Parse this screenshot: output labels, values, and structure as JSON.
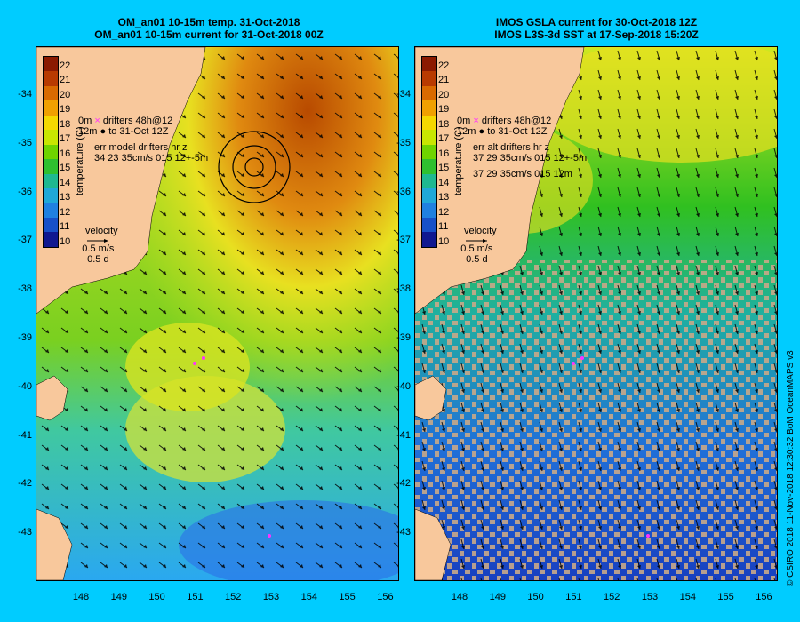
{
  "left_panel": {
    "title_line1": "OM_an01 10-15m temp. 31-Oct-2018",
    "title_line2": "OM_an01 10-15m current for 31-Oct-2018 00Z",
    "legend": {
      "drifters_label": "drifters 48h@12",
      "drifters_label2": "to 31-Oct 12Z",
      "depth_marker": "0m",
      "depth_marker2": "12m",
      "err_label": "err model drifters hr z",
      "err_values": "34 23 35cm/s 015 12+-5m",
      "velocity_title": "velocity",
      "velocity_value": "0.5 m/s",
      "velocity_days": "0.5 d"
    }
  },
  "right_panel": {
    "title_line1": "IMOS GSLA current for 30-Oct-2018 12Z",
    "title_line2": "IMOS L3S-3d SST at 17-Sep-2018 15:20Z",
    "legend": {
      "drifters_label": "drifters 48h@12",
      "drifters_label2": "to 31-Oct 12Z",
      "depth_marker": "0m",
      "depth_marker2": "12m",
      "err_label": "err alt drifters hr z",
      "err_values": "37 29 35cm/s 015 12+-5m",
      "err_values2": "37 29 35cm/s 015 12m",
      "velocity_title": "velocity",
      "velocity_value": "0.5 m/s",
      "velocity_days": "0.5 d"
    }
  },
  "colorbar": {
    "label": "temperature (C)",
    "ticks": [
      "22",
      "21",
      "20",
      "19",
      "18",
      "17",
      "16",
      "15",
      "14",
      "13",
      "12",
      "11",
      "10"
    ],
    "colors": [
      "#8b1a00",
      "#b83a00",
      "#d96a00",
      "#f0a000",
      "#f5d800",
      "#c8e600",
      "#6fd400",
      "#2fc02f",
      "#1fb890",
      "#20a8d8",
      "#2080e0",
      "#1850c8",
      "#101890"
    ]
  },
  "lat_labels": [
    "-34",
    "-35",
    "-36",
    "-37",
    "-38",
    "-39",
    "-40",
    "-41",
    "-42",
    "-43"
  ],
  "lon_labels": [
    "148",
    "149",
    "150",
    "151",
    "152",
    "153",
    "154",
    "155",
    "156"
  ],
  "credit": "© CSIRO 2018   11-Nov-2018 12:30:32 BoM OceanMAPS v3",
  "colors": {
    "background": "#00ccff",
    "land": "#f8c89c",
    "no_data": "#c8a888",
    "drifter": "#ff33ff"
  }
}
